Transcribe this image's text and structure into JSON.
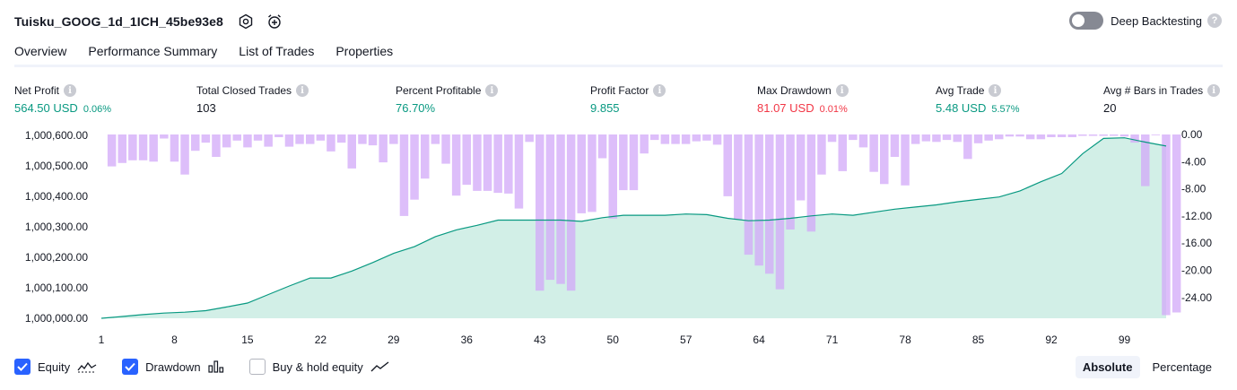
{
  "header": {
    "title": "Tuisku_GOOG_1d_1ICH_45be93e8",
    "deep_backtesting_label": "Deep Backtesting",
    "deep_backtesting_on": false,
    "help_glyph": "?",
    "icons": [
      "settings-icon",
      "alarm-add-icon"
    ]
  },
  "tabs": [
    {
      "label": "Overview",
      "active": true
    },
    {
      "label": "Performance Summary",
      "active": false
    },
    {
      "label": "List of Trades",
      "active": false
    },
    {
      "label": "Properties",
      "active": false
    }
  ],
  "stats": [
    {
      "label": "Net Profit",
      "value": "564.50 USD",
      "pct": "0.06%",
      "color": "#089981"
    },
    {
      "label": "Total Closed Trades",
      "value": "103",
      "pct": "",
      "color": "#131722"
    },
    {
      "label": "Percent Profitable",
      "value": "76.70%",
      "pct": "",
      "color": "#089981"
    },
    {
      "label": "Profit Factor",
      "value": "9.855",
      "pct": "",
      "color": "#089981"
    },
    {
      "label": "Max Drawdown",
      "value": "81.07 USD",
      "pct": "0.01%",
      "color": "#f23645"
    },
    {
      "label": "Avg Trade",
      "value": "5.48 USD",
      "pct": "5.57%",
      "color": "#089981"
    },
    {
      "label": "Avg # Bars in Trades",
      "value": "20",
      "pct": "",
      "color": "#131722"
    }
  ],
  "info_glyph": "i",
  "chart_data": {
    "type": "area",
    "x_ticks": [
      "1",
      "8",
      "15",
      "22",
      "29",
      "36",
      "43",
      "50",
      "57",
      "64",
      "71",
      "78",
      "85",
      "92",
      "99"
    ],
    "x_range": [
      1,
      103
    ],
    "left_axis": {
      "ticks": [
        "1,000,600.00",
        "1,000,500.00",
        "1,000,400.00",
        "1,000,300.00",
        "1,000,200.00",
        "1,000,100.00",
        "1,000,000.00"
      ],
      "ylim": [
        1000000,
        1000600
      ]
    },
    "right_axis": {
      "ticks": [
        "0.00",
        "-4.00",
        "-8.00",
        "-12.00",
        "-16.00",
        "-20.00",
        "-24.00"
      ],
      "ylim": [
        -27,
        0
      ]
    },
    "series": [
      {
        "name": "Equity",
        "kind": "area",
        "color": "#089981",
        "fill": "#d2efe7",
        "x": [
          1,
          3,
          5,
          7,
          9,
          11,
          13,
          15,
          17,
          19,
          21,
          23,
          25,
          27,
          29,
          31,
          33,
          35,
          37,
          39,
          41,
          43,
          45,
          47,
          49,
          51,
          53,
          55,
          57,
          59,
          61,
          63,
          65,
          67,
          69,
          71,
          73,
          75,
          77,
          79,
          81,
          83,
          85,
          87,
          89,
          91,
          93,
          95,
          97,
          99,
          101,
          103
        ],
        "y": [
          1000000,
          1000006,
          1000012,
          1000017,
          1000020,
          1000025,
          1000037,
          1000050,
          1000078,
          1000106,
          1000132,
          1000132,
          1000155,
          1000183,
          1000213,
          1000235,
          1000268,
          1000290,
          1000305,
          1000322,
          1000322,
          1000322,
          1000322,
          1000318,
          1000330,
          1000338,
          1000338,
          1000338,
          1000342,
          1000340,
          1000328,
          1000320,
          1000322,
          1000328,
          1000336,
          1000342,
          1000338,
          1000348,
          1000358,
          1000365,
          1000372,
          1000382,
          1000390,
          1000398,
          1000418,
          1000448,
          1000475,
          1000540,
          1000590,
          1000592,
          1000578,
          1000565
        ]
      },
      {
        "name": "Drawdown",
        "kind": "bar",
        "color": "#d1a8f8",
        "overlap_color": "#a8a7e2",
        "values": [
          0,
          -4.7,
          -4.2,
          -3.8,
          -3.8,
          -4.0,
          -0.6,
          -4.0,
          -5.9,
          -2.4,
          -1.2,
          -3.3,
          -1.9,
          -0.9,
          -1.9,
          -0.9,
          -1.8,
          -0.4,
          -1.8,
          -1.4,
          -1.4,
          -0.9,
          -2.5,
          -1.2,
          -5.0,
          -1.4,
          -1.6,
          -4.1,
          -1.4,
          -12.0,
          -9.6,
          -6.5,
          -1.4,
          -4.3,
          -9.0,
          -7.4,
          -8.3,
          -8.3,
          -8.6,
          -8.7,
          -10.9,
          -1.1,
          -23.0,
          -21.4,
          -22.0,
          -23.0,
          -11.6,
          -11.4,
          -3.5,
          -12.4,
          -8.2,
          -8.2,
          -2.8,
          -0.8,
          -1.4,
          -1.4,
          -1.4,
          -1.0,
          -0.9,
          -1.5,
          -9.1,
          -12.5,
          -17.7,
          -19.3,
          -20.5,
          -22.8,
          -14.0,
          -9.7,
          -14.3,
          -5.9,
          -1.1,
          -5.4,
          -0.8,
          -1.9,
          -5.5,
          -7.3,
          -3.3,
          -7.5,
          -1.4,
          -1.0,
          -1.1,
          -0.8,
          -1.1,
          -3.6,
          -1.3,
          -0.9,
          -0.7,
          -0.3,
          -0.3,
          -0.7,
          -0.7,
          -0.4,
          -0.4,
          -0.4,
          -0.2,
          -0.2,
          -0.2,
          -0.2,
          -0.3,
          -1.2,
          -7.6,
          -0.1,
          -26.6,
          -26.2
        ]
      },
      {
        "name": "Buy & hold equity",
        "kind": "line",
        "visible": false
      }
    ]
  },
  "legend": [
    {
      "label": "Equity",
      "checked": true,
      "icon": "equity-line-icon"
    },
    {
      "label": "Drawdown",
      "checked": true,
      "icon": "drawdown-bars-icon"
    },
    {
      "label": "Buy & hold equity",
      "checked": false,
      "icon": "buy-hold-line-icon"
    }
  ],
  "view_modes": [
    {
      "label": "Absolute",
      "active": true
    },
    {
      "label": "Percentage",
      "active": false
    }
  ]
}
